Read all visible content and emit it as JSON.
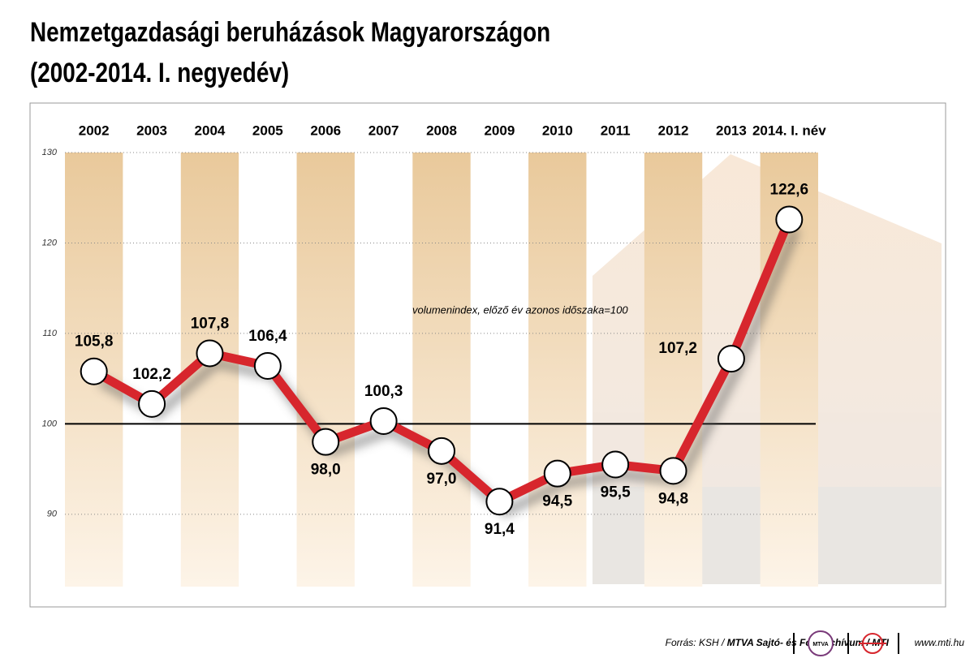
{
  "chart_data": {
    "type": "line",
    "title": "Nemzetgazdasági beruházások Magyarországon",
    "subtitle": "(2002-2014. I. negyedév)",
    "annotation": "volumenindex, előző év azonos időszaka=100",
    "categories": [
      "2002",
      "2003",
      "2004",
      "2005",
      "2006",
      "2007",
      "2008",
      "2009",
      "2010",
      "2011",
      "2012",
      "2013",
      "2014. I. név"
    ],
    "values": [
      105.8,
      102.2,
      107.8,
      106.4,
      98.0,
      100.3,
      97.0,
      91.4,
      94.5,
      95.5,
      94.8,
      107.2,
      122.6
    ],
    "value_labels": [
      "105,8",
      "102,2",
      "107,8",
      "106,4",
      "98,0",
      "100,3",
      "97,0",
      "91,4",
      "94,5",
      "95,5",
      "94,8",
      "107,2",
      "122,6"
    ],
    "color": "#d7262d",
    "ylim": [
      82,
      130
    ],
    "yticks": [
      90,
      100,
      110,
      120,
      130
    ],
    "grid": true,
    "reference_line": 100,
    "source": "Forrás: KSH / ",
    "source_bold": "MTVA Sajtó- és Fotóarchívum / MTI",
    "logo": "MTVA",
    "website": "www.mti.hu"
  }
}
